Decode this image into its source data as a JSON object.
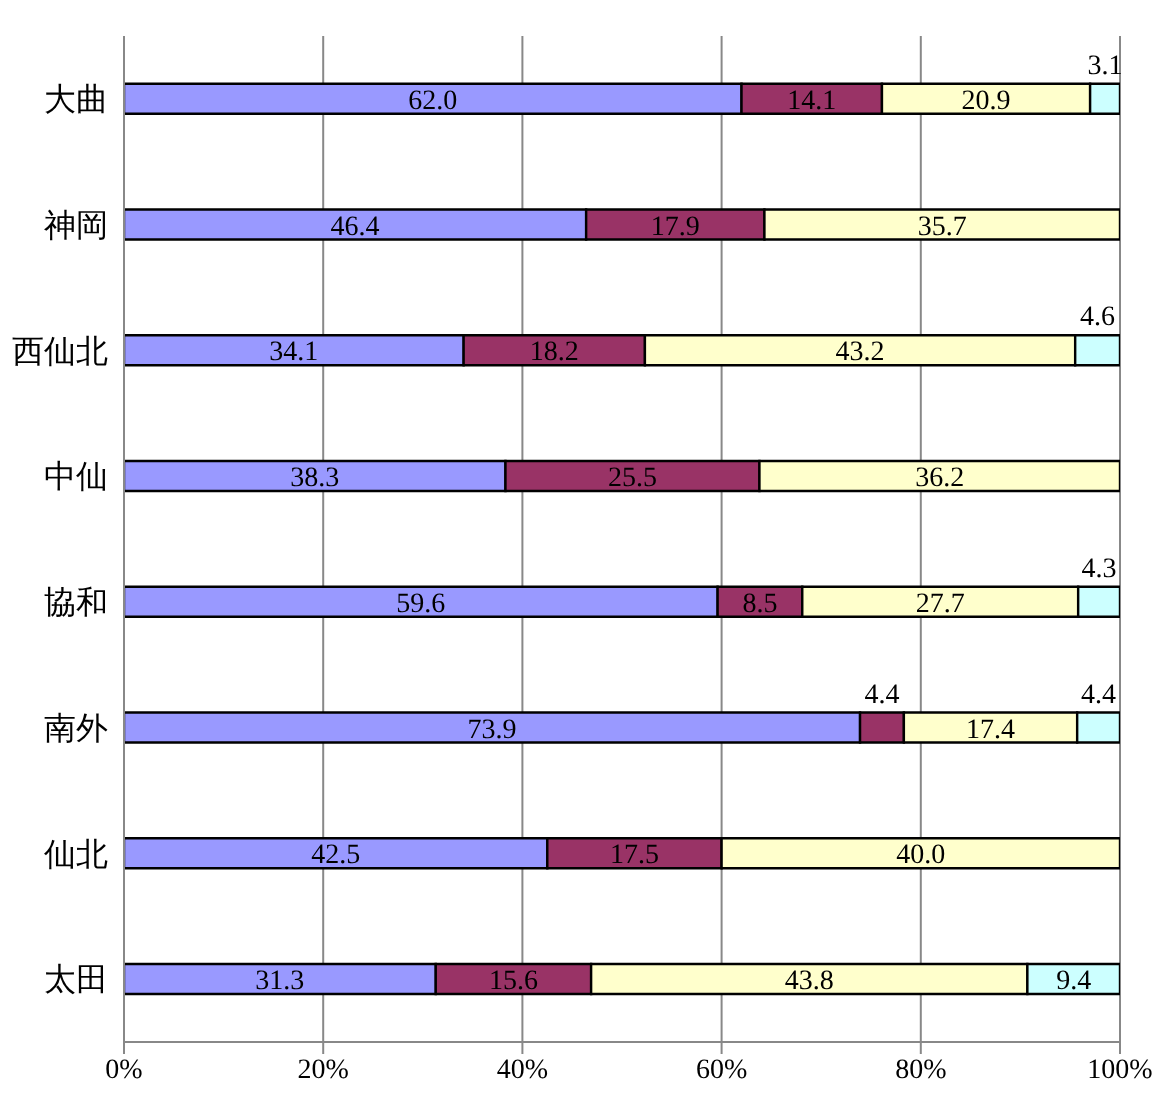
{
  "chart_data": {
    "type": "bar",
    "orientation": "horizontal",
    "stacked": true,
    "categories": [
      "大曲",
      "神岡",
      "西仙北",
      "中仙",
      "協和",
      "南外",
      "仙北",
      "太田"
    ],
    "series": [
      {
        "color": "#9999ff",
        "values": [
          62.0,
          46.4,
          34.1,
          38.3,
          59.6,
          73.9,
          42.5,
          31.3
        ],
        "value_labels": [
          "62.0",
          "46.4",
          "34.1",
          "38.3",
          "59.6",
          "73.9",
          "42.5",
          "31.3"
        ]
      },
      {
        "color": "#993366",
        "values": [
          14.1,
          17.9,
          18.2,
          25.5,
          8.5,
          4.4,
          17.5,
          15.6
        ],
        "value_labels": [
          "14.1",
          "17.9",
          "18.2",
          "25.5",
          "8.5",
          "4.4",
          "17.5",
          "15.6"
        ]
      },
      {
        "color": "#ffffcc",
        "values": [
          20.9,
          35.7,
          43.2,
          36.2,
          27.7,
          17.4,
          40.0,
          43.8
        ],
        "value_labels": [
          "20.9",
          "35.7",
          "43.2",
          "36.2",
          "27.7",
          "17.4",
          "40.0",
          "43.8"
        ]
      },
      {
        "color": "#ccffff",
        "values": [
          3.1,
          null,
          4.6,
          null,
          4.3,
          4.4,
          null,
          9.4
        ],
        "value_labels": [
          "3.1",
          null,
          "4.6",
          null,
          "4.3",
          "4.4",
          null,
          "9.4"
        ]
      }
    ],
    "xlim": [
      0,
      100
    ],
    "xticks": [
      {
        "value": 0,
        "label": "0%"
      },
      {
        "value": 20,
        "label": "20%"
      },
      {
        "value": 40,
        "label": "40%"
      },
      {
        "value": 60,
        "label": "60%"
      },
      {
        "value": 80,
        "label": "80%"
      },
      {
        "value": 100,
        "label": "100%"
      }
    ],
    "grid": "x",
    "legend": false
  }
}
